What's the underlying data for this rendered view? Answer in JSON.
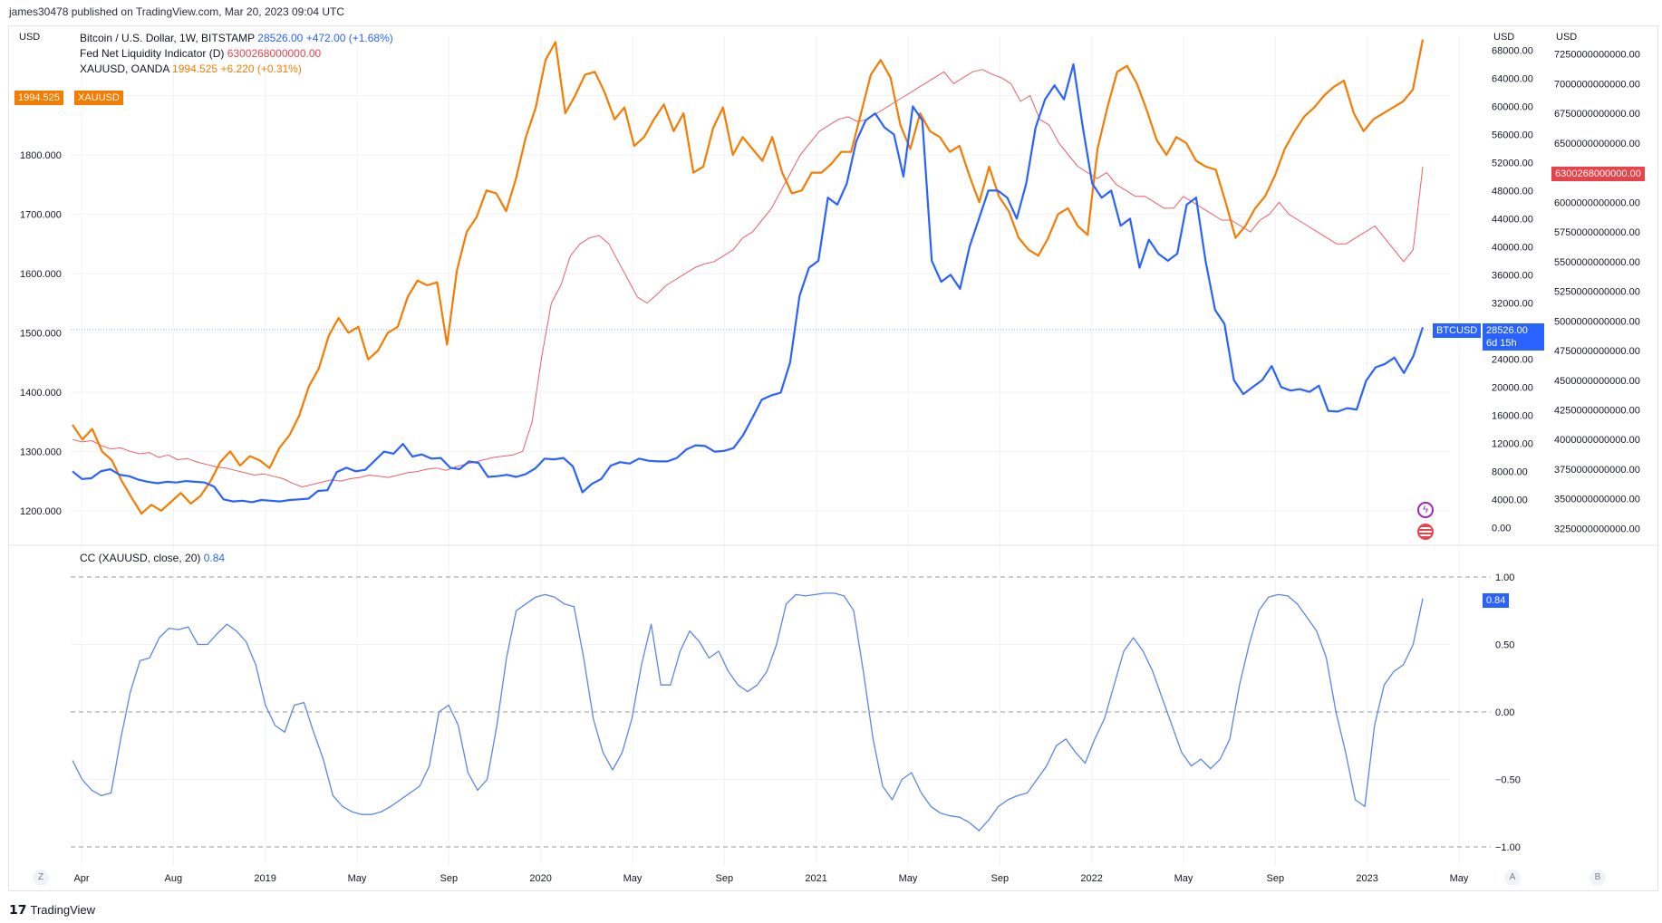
{
  "header": {
    "publisher": "james30478 published on TradingView.com, Mar 20, 2023 09:04 UTC"
  },
  "units": {
    "left": "USD",
    "right1": "USD",
    "right2": "USD"
  },
  "legend": {
    "btc": {
      "name": "Bitcoin / U.S. Dollar, 1W, BITSTAMP",
      "value": "28526.00",
      "change": "+472.00 (+1.68%)"
    },
    "fed": {
      "name": "Fed Net Liquidity Indicator (D)",
      "value": "6300268000000.00"
    },
    "xau": {
      "name": "XAUUSD, OANDA",
      "value": "1994.525",
      "change": "+6.220 (+0.31%)"
    },
    "cc": {
      "name": "CC (XAUUSD, close, 20)",
      "value": "0.84"
    }
  },
  "tags": {
    "xau_value": "1994.525",
    "xau_label": "XAUUSD",
    "fed_value": "6300268000000.00",
    "btc_label": "BTCUSD",
    "btc_value": "28526.00",
    "btc_countdown": "6d 15h",
    "cc_value": "0.84"
  },
  "colors": {
    "btc": "#2962ff",
    "xau": "#f57c00",
    "fed": "#e8434b",
    "cc": "#5b86e5",
    "grid": "#f0f3fa"
  },
  "footer": {
    "brand": "TradingView"
  },
  "buttons": {
    "z": "Z",
    "a": "A",
    "b": "B"
  },
  "chart_data": [
    {
      "type": "line",
      "x_ticks": [
        "Apr",
        "Aug",
        "2019",
        "May",
        "Sep",
        "2020",
        "May",
        "Sep",
        "2021",
        "May",
        "Sep",
        "2022",
        "May",
        "Sep",
        "2023",
        "May"
      ],
      "left_axis": {
        "label": "USD",
        "ticks": [
          "1900.000",
          "1800.000",
          "1700.000",
          "1600.000",
          "1500.000",
          "1400.000",
          "1300.000",
          "1200.000"
        ],
        "ylim": [
          1160,
          2000
        ]
      },
      "right_axis_btc": {
        "label": "USD",
        "ticks": [
          "68000.00",
          "64000.00",
          "60000.00",
          "56000.00",
          "52000.00",
          "48000.00",
          "44000.00",
          "40000.00",
          "36000.00",
          "32000.00",
          "24000.00",
          "20000.00",
          "16000.00",
          "12000.00",
          "8000.00",
          "4000.00",
          "0.00"
        ],
        "ylim": [
          -1000,
          70000
        ]
      },
      "right_axis_fed": {
        "label": "USD",
        "ticks": [
          "7250000000000.00",
          "7000000000000.00",
          "6750000000000.00",
          "6500000000000.00",
          "6250000000000.00",
          "6000000000000.00",
          "5750000000000.00",
          "5500000000000.00",
          "5250000000000.00",
          "5000000000000.00",
          "4750000000000.00",
          "4500000000000.00",
          "4250000000000.00",
          "4000000000000.00",
          "3750000000000.00",
          "3500000000000.00",
          "3250000000000.00"
        ],
        "ylim": [
          3200000000000,
          7400000000000
        ]
      },
      "series": [
        {
          "name": "XAUUSD",
          "axis": "left",
          "color": "#f57c00",
          "values": [
            1345,
            1320,
            1338,
            1300,
            1285,
            1250,
            1222,
            1195,
            1210,
            1200,
            1215,
            1230,
            1212,
            1225,
            1250,
            1282,
            1300,
            1276,
            1292,
            1285,
            1272,
            1306,
            1327,
            1360,
            1410,
            1440,
            1495,
            1525,
            1500,
            1510,
            1455,
            1470,
            1500,
            1510,
            1560,
            1588,
            1580,
            1585,
            1480,
            1605,
            1670,
            1695,
            1740,
            1735,
            1705,
            1760,
            1830,
            1880,
            1960,
            1990,
            1870,
            1900,
            1935,
            1940,
            1905,
            1860,
            1880,
            1815,
            1830,
            1860,
            1885,
            1840,
            1870,
            1770,
            1780,
            1845,
            1880,
            1800,
            1830,
            1810,
            1790,
            1830,
            1770,
            1735,
            1740,
            1770,
            1770,
            1785,
            1805,
            1805,
            1870,
            1935,
            1960,
            1930,
            1850,
            1810,
            1870,
            1840,
            1830,
            1805,
            1815,
            1765,
            1720,
            1780,
            1730,
            1705,
            1660,
            1640,
            1630,
            1660,
            1700,
            1710,
            1680,
            1665,
            1810,
            1880,
            1940,
            1950,
            1920,
            1875,
            1825,
            1800,
            1830,
            1820,
            1790,
            1780,
            1775,
            1720,
            1660,
            1680,
            1710,
            1730,
            1765,
            1810,
            1840,
            1865,
            1880,
            1900,
            1915,
            1925,
            1870,
            1840,
            1860,
            1870,
            1880,
            1890,
            1910,
            1994.5
          ]
        },
        {
          "name": "BTCUSD",
          "axis": "btc",
          "color": "#2962ff",
          "values": [
            8000,
            6900,
            7000,
            8000,
            8300,
            7500,
            7300,
            6800,
            6500,
            6300,
            6500,
            6400,
            6600,
            6500,
            6400,
            5800,
            4000,
            3700,
            3800,
            3600,
            3900,
            3800,
            3700,
            3900,
            4000,
            4100,
            5200,
            5300,
            7900,
            8500,
            8000,
            8200,
            9500,
            10800,
            10500,
            11900,
            10100,
            10400,
            9800,
            9900,
            8500,
            8300,
            9400,
            9200,
            7200,
            7300,
            7500,
            7200,
            7600,
            8400,
            9800,
            9700,
            9900,
            8700,
            5000,
            6200,
            6900,
            8800,
            9300,
            9100,
            9800,
            9500,
            9400,
            9400,
            9900,
            11100,
            11700,
            11600,
            10800,
            10900,
            11300,
            13100,
            15600,
            18200,
            18800,
            19200,
            23500,
            33000,
            37000,
            38000,
            47000,
            46000,
            49000,
            55000,
            58000,
            59000,
            57000,
            56000,
            50000,
            60000,
            58000,
            38000,
            35000,
            36000,
            34000,
            40000,
            44000,
            48000,
            48000,
            47000,
            44000,
            49000,
            57000,
            61000,
            63000,
            61000,
            66000,
            57000,
            49000,
            47000,
            48000,
            43000,
            44000,
            37000,
            41000,
            39000,
            38000,
            39000,
            46000,
            47000,
            38000,
            31000,
            29000,
            21000,
            19000,
            20000,
            21000,
            23000,
            20000,
            19500,
            19700,
            19300,
            20200,
            16600,
            16500,
            17000,
            16800,
            20900,
            22800,
            23300,
            24200,
            22000,
            24400,
            28526
          ]
        },
        {
          "name": "Fed Net Liquidity Indicator",
          "axis": "fed",
          "color": "#e8434b",
          "values": [
            4000000000000,
            3980000000000,
            3990000000000,
            3950000000000,
            3920000000000,
            3930000000000,
            3900000000000,
            3880000000000,
            3890000000000,
            3850000000000,
            3870000000000,
            3830000000000,
            3840000000000,
            3810000000000,
            3790000000000,
            3770000000000,
            3760000000000,
            3740000000000,
            3720000000000,
            3700000000000,
            3710000000000,
            3690000000000,
            3670000000000,
            3630000000000,
            3600000000000,
            3620000000000,
            3640000000000,
            3660000000000,
            3650000000000,
            3670000000000,
            3680000000000,
            3700000000000,
            3690000000000,
            3680000000000,
            3700000000000,
            3720000000000,
            3730000000000,
            3750000000000,
            3760000000000,
            3740000000000,
            3770000000000,
            3790000000000,
            3810000000000,
            3830000000000,
            3850000000000,
            3860000000000,
            3870000000000,
            3900000000000,
            4150000000000,
            4700000000000,
            5150000000000,
            5300000000000,
            5550000000000,
            5650000000000,
            5700000000000,
            5720000000000,
            5650000000000,
            5500000000000,
            5350000000000,
            5200000000000,
            5150000000000,
            5220000000000,
            5300000000000,
            5350000000000,
            5400000000000,
            5450000000000,
            5480000000000,
            5500000000000,
            5550000000000,
            5600000000000,
            5700000000000,
            5750000000000,
            5850000000000,
            5950000000000,
            6100000000000,
            6250000000000,
            6400000000000,
            6500000000000,
            6600000000000,
            6650000000000,
            6700000000000,
            6720000000000,
            6680000000000,
            6700000000000,
            6750000000000,
            6800000000000,
            6850000000000,
            6900000000000,
            6950000000000,
            7000000000000,
            7050000000000,
            7100000000000,
            7000000000000,
            7050000000000,
            7100000000000,
            7120000000000,
            7080000000000,
            7050000000000,
            7000000000000,
            6850000000000,
            6900000000000,
            6700000000000,
            6650000000000,
            6500000000000,
            6400000000000,
            6300000000000,
            6250000000000,
            6200000000000,
            6250000000000,
            6150000000000,
            6100000000000,
            6050000000000,
            6050000000000,
            6000000000000,
            5950000000000,
            5950000000000,
            6050000000000,
            6000000000000,
            5950000000000,
            5900000000000,
            5850000000000,
            5850000000000,
            5800000000000,
            5750000000000,
            5850000000000,
            5900000000000,
            6000000000000,
            5900000000000,
            5850000000000,
            5800000000000,
            5750000000000,
            5700000000000,
            5650000000000,
            5650000000000,
            5700000000000,
            5750000000000,
            5800000000000,
            5700000000000,
            5600000000000,
            5500000000000,
            5600000000000,
            6300268000000
          ]
        }
      ]
    },
    {
      "type": "line",
      "title": "CC (XAUUSD, close, 20)",
      "right_axis": {
        "ticks": [
          "1.00",
          "0.50",
          "0.00",
          "−0.50",
          "−1.00"
        ],
        "ylim": [
          -1.0,
          1.0
        ]
      },
      "reference_lines": [
        1.0,
        0.0,
        -1.0
      ],
      "series": [
        {
          "name": "CC (XAUUSD, close, 20)",
          "color": "#5b86e5",
          "values": [
            -0.36,
            -0.5,
            -0.58,
            -0.62,
            -0.6,
            -0.2,
            0.15,
            0.38,
            0.4,
            0.55,
            0.62,
            0.61,
            0.63,
            0.5,
            0.5,
            0.58,
            0.65,
            0.6,
            0.52,
            0.35,
            0.05,
            -0.1,
            -0.15,
            0.05,
            0.07,
            -0.15,
            -0.35,
            -0.62,
            -0.7,
            -0.74,
            -0.76,
            -0.76,
            -0.74,
            -0.7,
            -0.65,
            -0.6,
            -0.55,
            -0.4,
            0.0,
            0.05,
            -0.1,
            -0.45,
            -0.58,
            -0.5,
            -0.1,
            0.4,
            0.75,
            0.8,
            0.85,
            0.87,
            0.85,
            0.8,
            0.78,
            0.4,
            -0.05,
            -0.3,
            -0.43,
            -0.3,
            -0.05,
            0.35,
            0.65,
            0.2,
            0.2,
            0.45,
            0.6,
            0.52,
            0.4,
            0.45,
            0.3,
            0.2,
            0.15,
            0.2,
            0.3,
            0.5,
            0.8,
            0.87,
            0.86,
            0.87,
            0.88,
            0.88,
            0.86,
            0.75,
            0.3,
            -0.2,
            -0.55,
            -0.65,
            -0.5,
            -0.45,
            -0.6,
            -0.7,
            -0.75,
            -0.77,
            -0.78,
            -0.82,
            -0.88,
            -0.8,
            -0.7,
            -0.65,
            -0.62,
            -0.6,
            -0.5,
            -0.4,
            -0.25,
            -0.2,
            -0.3,
            -0.38,
            -0.2,
            -0.05,
            0.2,
            0.45,
            0.55,
            0.45,
            0.3,
            0.1,
            -0.1,
            -0.3,
            -0.4,
            -0.35,
            -0.42,
            -0.35,
            -0.2,
            0.2,
            0.5,
            0.75,
            0.85,
            0.87,
            0.86,
            0.8,
            0.7,
            0.6,
            0.4,
            0.0,
            -0.3,
            -0.65,
            -0.7,
            -0.1,
            0.2,
            0.3,
            0.35,
            0.5,
            0.84
          ]
        }
      ]
    }
  ]
}
